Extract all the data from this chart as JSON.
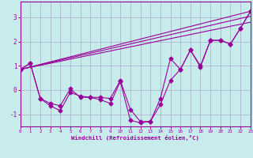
{
  "bg_color": "#c8ecec",
  "line_color": "#990099",
  "grid_color": "#aaaacc",
  "xlabel": "Windchill (Refroidissement éolien,°C)",
  "xlim": [
    0,
    23
  ],
  "ylim": [
    -1.5,
    3.65
  ],
  "xticks": [
    0,
    1,
    2,
    3,
    4,
    5,
    6,
    7,
    8,
    9,
    10,
    11,
    12,
    13,
    14,
    15,
    16,
    17,
    18,
    19,
    20,
    21,
    22,
    23
  ],
  "yticks": [
    -1,
    0,
    1,
    2,
    3
  ],
  "line1_y": [
    0.85,
    1.1,
    -0.35,
    -0.55,
    -0.65,
    0.05,
    -0.3,
    -0.3,
    -0.3,
    -0.35,
    0.4,
    -0.8,
    -1.3,
    -1.3,
    -0.35,
    1.3,
    0.85,
    1.65,
    0.95,
    2.05,
    2.05,
    1.9,
    2.55,
    3.25
  ],
  "line2_y": [
    0.85,
    1.1,
    -0.35,
    -0.65,
    -0.85,
    -0.1,
    -0.25,
    -0.3,
    -0.4,
    -0.55,
    0.35,
    -1.25,
    -1.35,
    -1.3,
    -0.6,
    0.4,
    0.85,
    1.65,
    1.0,
    2.05,
    2.05,
    1.9,
    2.55,
    3.25
  ],
  "trend_lines": [
    [
      [
        0,
        23
      ],
      [
        0.85,
        3.25
      ]
    ],
    [
      [
        0,
        23
      ],
      [
        0.85,
        3.05
      ]
    ],
    [
      [
        0,
        23
      ],
      [
        0.85,
        2.8
      ]
    ]
  ]
}
